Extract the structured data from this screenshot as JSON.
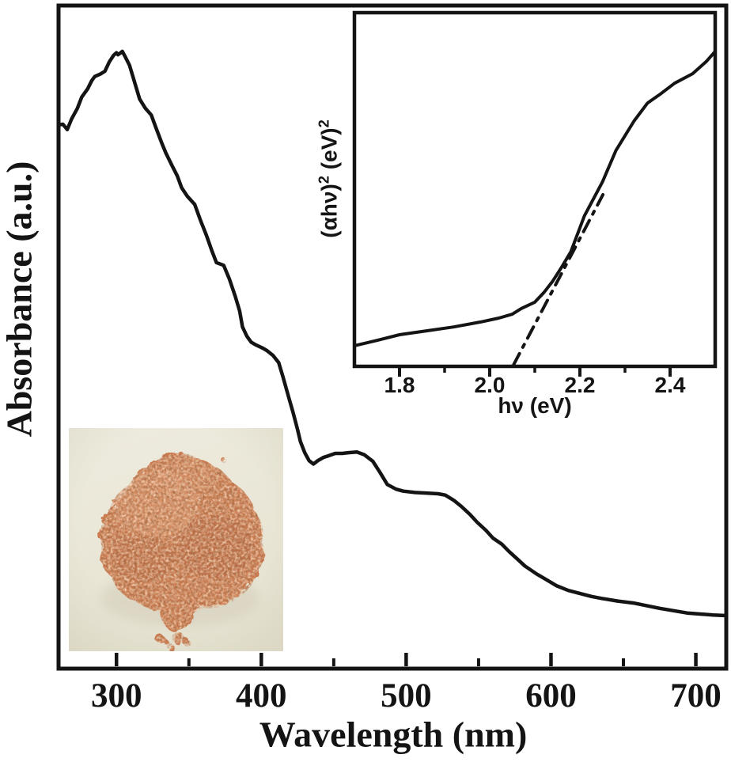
{
  "figure": {
    "background": "#ffffff",
    "ink_color": "#141414",
    "description": "UV-Vis absorbance spectrum with Tauc-plot inset and powder sample photo"
  },
  "chart_data": [
    {
      "id": "main-spectrum",
      "type": "line",
      "title": "",
      "xlabel": "Wavelength (nm)",
      "ylabel": "Absorbance (a.u.)",
      "xlim": [
        260,
        721
      ],
      "ylim": [
        0,
        1
      ],
      "grid": false,
      "x_ticks_major": [
        300,
        400,
        500,
        600,
        700
      ],
      "x_ticks_minor": [
        350,
        450,
        550,
        650
      ],
      "x_tick_labels": [
        "300",
        "400",
        "500",
        "600",
        "700"
      ],
      "series": [
        {
          "name": "absorbance",
          "style": "solid",
          "x": [
            260,
            263,
            266,
            269,
            273,
            276,
            280,
            283,
            285,
            289,
            292,
            295,
            298,
            300,
            301,
            303,
            304,
            306,
            309,
            313,
            316,
            320,
            324,
            327,
            331,
            334,
            338,
            342,
            345,
            349,
            354,
            358,
            362,
            366,
            369,
            374,
            378,
            382,
            385,
            387,
            390,
            393,
            396,
            401,
            404,
            408,
            412,
            415,
            419,
            422,
            425,
            427,
            430,
            433,
            436,
            439,
            443,
            446,
            451,
            456,
            460,
            466,
            471,
            477,
            482,
            487,
            493,
            498,
            506,
            515,
            522,
            527,
            533,
            538,
            544,
            549,
            555,
            560,
            566,
            571,
            577,
            582,
            590,
            597,
            604,
            612,
            619,
            628,
            635,
            646,
            657,
            675,
            694,
            712,
            721
          ],
          "y": [
            0.821,
            0.822,
            0.814,
            0.83,
            0.846,
            0.863,
            0.875,
            0.888,
            0.894,
            0.898,
            0.902,
            0.916,
            0.926,
            0.93,
            0.927,
            0.93,
            0.932,
            0.924,
            0.911,
            0.882,
            0.86,
            0.846,
            0.836,
            0.818,
            0.795,
            0.779,
            0.761,
            0.744,
            0.726,
            0.713,
            0.701,
            0.677,
            0.655,
            0.63,
            0.613,
            0.609,
            0.588,
            0.562,
            0.54,
            0.516,
            0.502,
            0.493,
            0.489,
            0.484,
            0.48,
            0.473,
            0.462,
            0.44,
            0.409,
            0.386,
            0.361,
            0.343,
            0.326,
            0.314,
            0.309,
            0.314,
            0.319,
            0.321,
            0.325,
            0.325,
            0.326,
            0.327,
            0.323,
            0.313,
            0.296,
            0.278,
            0.271,
            0.268,
            0.266,
            0.265,
            0.264,
            0.262,
            0.254,
            0.245,
            0.233,
            0.221,
            0.209,
            0.197,
            0.188,
            0.177,
            0.165,
            0.155,
            0.143,
            0.134,
            0.125,
            0.118,
            0.114,
            0.109,
            0.106,
            0.102,
            0.099,
            0.091,
            0.084,
            0.081,
            0.08
          ]
        }
      ]
    },
    {
      "id": "tauc-inset",
      "type": "line",
      "title": "",
      "xlabel": "hν (eV)",
      "ylabel": "(αhν)² (eV)²",
      "ylabel_parts": {
        "base1": "(αhν)",
        "exp1": "2",
        "base2": " (eV)",
        "exp2": "2"
      },
      "xlim": [
        1.7,
        2.5
      ],
      "ylim": [
        0,
        1
      ],
      "grid": false,
      "x_ticks_major": [
        1.8,
        2.0,
        2.2,
        2.4
      ],
      "x_ticks_minor": [
        1.9,
        2.1,
        2.3
      ],
      "x_tick_labels": [
        "1.8",
        "2.0",
        "2.2",
        "2.4"
      ],
      "series": [
        {
          "name": "tauc-curve",
          "style": "solid",
          "x": [
            1.7,
            1.75,
            1.8,
            1.86,
            1.92,
            1.98,
            2.02,
            2.05,
            2.07,
            2.1,
            2.12,
            2.14,
            2.16,
            2.18,
            2.21,
            2.25,
            2.28,
            2.32,
            2.35,
            2.38,
            2.41,
            2.45,
            2.48,
            2.5
          ],
          "y": [
            0.054,
            0.069,
            0.085,
            0.096,
            0.107,
            0.121,
            0.132,
            0.143,
            0.159,
            0.177,
            0.204,
            0.237,
            0.277,
            0.32,
            0.421,
            0.517,
            0.606,
            0.689,
            0.74,
            0.767,
            0.796,
            0.823,
            0.857,
            0.886
          ]
        },
        {
          "name": "bandgap-tangent",
          "style": "dashdot",
          "x": [
            2.053,
            2.251
          ],
          "y": [
            0,
            0.481
          ]
        }
      ]
    }
  ],
  "photo_inset": {
    "description": "photograph of salmon-pink powder sample on cream background",
    "background_color_top": "#eeecdf",
    "background_color_bottom": "#e6e2d1",
    "powder_base_color": "#c97a50",
    "powder_light_color": "#df9c74",
    "powder_mid_dark_color": "#a85a36",
    "powder_dark_color": "#70351d",
    "shadow_color": "#cfc9b4"
  }
}
